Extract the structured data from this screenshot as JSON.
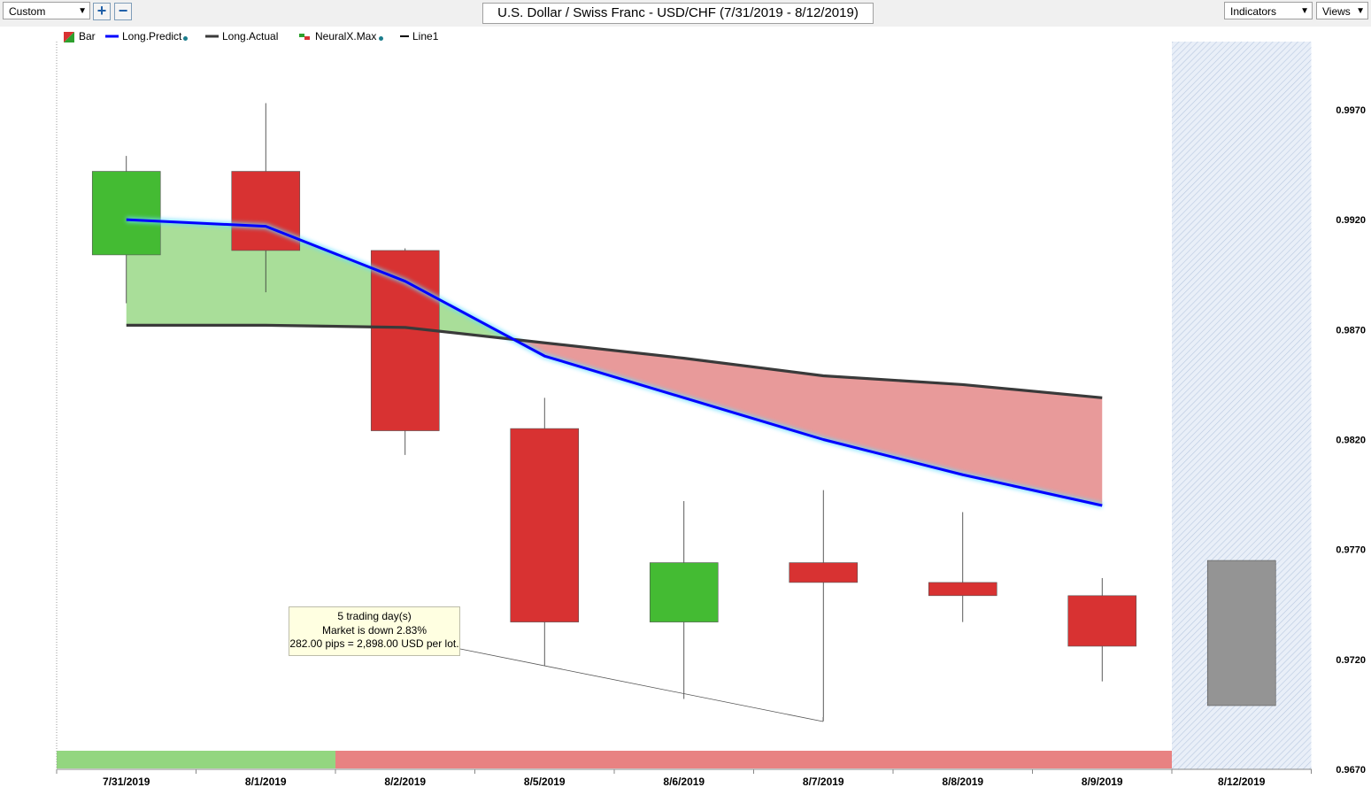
{
  "toolbar": {
    "preset_value": "Custom",
    "title": "U.S. Dollar / Swiss Franc - USD/CHF (7/31/2019 - 8/12/2019)",
    "indicators_label": "Indicators",
    "views_label": "Views"
  },
  "legend": [
    {
      "label": "Bar",
      "color": "#d83232"
    },
    {
      "label": "Long.Predict",
      "color": "#0000ff"
    },
    {
      "label": "Long.Actual",
      "color": "#3a3a3a"
    },
    {
      "label": "NeuralX.Max",
      "color": "#2ea02e"
    },
    {
      "label": "Line1",
      "color": "#000000"
    }
  ],
  "annotation": {
    "line1": "5 trading day(s)",
    "line2": "Market is down 2.83%",
    "line3": "282.00 pips = 2,898.00 USD per lot."
  },
  "chart_data": {
    "type": "candlestick",
    "title": "U.S. Dollar / Swiss Franc - USD/CHF (7/31/2019 - 8/12/2019)",
    "categories": [
      "7/31/2019",
      "8/1/2019",
      "8/2/2019",
      "8/5/2019",
      "8/6/2019",
      "8/7/2019",
      "8/8/2019",
      "8/9/2019",
      "8/12/2019"
    ],
    "ylim": [
      0.967,
      0.997
    ],
    "yticks": [
      "0.9970",
      "0.9920",
      "0.9870",
      "0.9820",
      "0.9770",
      "0.9720",
      "0.9670"
    ],
    "candles": [
      {
        "date": "7/31/2019",
        "open": 0.9904,
        "high": 0.9949,
        "low": 0.9882,
        "close": 0.9942,
        "direction": "up"
      },
      {
        "date": "8/1/2019",
        "open": 0.9942,
        "high": 0.9973,
        "low": 0.9887,
        "close": 0.9906,
        "direction": "down"
      },
      {
        "date": "8/2/2019",
        "open": 0.9906,
        "high": 0.9907,
        "low": 0.9813,
        "close": 0.9824,
        "direction": "down"
      },
      {
        "date": "8/5/2019",
        "open": 0.9825,
        "high": 0.9839,
        "low": 0.9717,
        "close": 0.9737,
        "direction": "down"
      },
      {
        "date": "8/6/2019",
        "open": 0.9737,
        "high": 0.9792,
        "low": 0.9702,
        "close": 0.9764,
        "direction": "up"
      },
      {
        "date": "8/7/2019",
        "open": 0.9764,
        "high": 0.9797,
        "low": 0.9692,
        "close": 0.9755,
        "direction": "down"
      },
      {
        "date": "8/8/2019",
        "open": 0.9755,
        "high": 0.9787,
        "low": 0.9737,
        "close": 0.9749,
        "direction": "down"
      },
      {
        "date": "8/9/2019",
        "open": 0.9749,
        "high": 0.9757,
        "low": 0.971,
        "close": 0.9726,
        "direction": "down"
      },
      {
        "date": "8/12/2019",
        "open": 0.9765,
        "high": 0.9765,
        "low": 0.9699,
        "close": 0.9699,
        "direction": "forecast"
      }
    ],
    "series": [
      {
        "name": "Long.Predict",
        "values": [
          0.992,
          0.9917,
          0.9892,
          0.9858,
          0.9839,
          0.982,
          0.9804,
          0.979,
          null
        ]
      },
      {
        "name": "Long.Actual",
        "values": [
          0.9872,
          0.9872,
          0.9871,
          0.9864,
          0.9857,
          0.9849,
          0.9845,
          0.9839,
          null
        ]
      }
    ],
    "trend_band": [
      {
        "from": "7/31/2019",
        "to": "8/2/2019",
        "color": "#93d680"
      },
      {
        "from": "8/2/2019",
        "to": "8/9/2019",
        "color": "#e88282"
      }
    ],
    "forecast_region": "8/12/2019"
  }
}
